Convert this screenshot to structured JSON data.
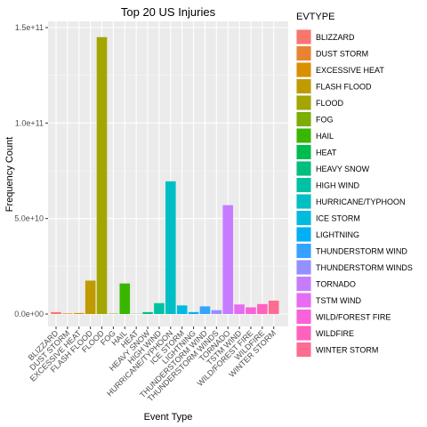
{
  "chart_data": {
    "type": "bar",
    "title": "Top 20 US Injuries",
    "xlabel": "Event Type",
    "ylabel": "Frequency Count",
    "ylim": [
      0,
      150000000000
    ],
    "y_ticks": [
      0,
      50000000000,
      100000000000,
      150000000000
    ],
    "y_tick_labels": [
      "0.0e+00",
      "5.0e+10",
      "1.0e+11",
      "1.5e+11"
    ],
    "grid": true,
    "legend_title": "EVTYPE",
    "legend_position": "right",
    "categories": [
      "BLIZZARD",
      "DUST STORM",
      "EXCESSIVE HEAT",
      "FLASH FLOOD",
      "FLOOD",
      "FOG",
      "HAIL",
      "HEAT",
      "HEAVY SNOW",
      "HIGH WIND",
      "HURRICANE/TYPHOON",
      "ICE STORM",
      "LIGHTNING",
      "THUNDERSTORM WIND",
      "THUNDERSTORM WINDS",
      "TORNADO",
      "TSTM WIND",
      "WILD/FOREST FIRE",
      "WILDFIRE",
      "WINTER STORM"
    ],
    "values": [
      1000000000,
      300000000,
      500000000,
      17500000000,
      145000000000,
      200000000,
      16000000000,
      100000000,
      1000000000,
      5700000000,
      69500000000,
      4500000000,
      1000000000,
      4000000000,
      2000000000,
      57000000000,
      5000000000,
      3500000000,
      5200000000,
      7000000000
    ],
    "colors": [
      "#F8766D",
      "#EA8331",
      "#D89000",
      "#C09B00",
      "#A3A500",
      "#7CAE00",
      "#39B600",
      "#00BB4E",
      "#00BF7D",
      "#00C1A3",
      "#00BFC4",
      "#00BAE0",
      "#00B0F6",
      "#35A2FF",
      "#9590FF",
      "#C77CFF",
      "#E76BF3",
      "#FA62DB",
      "#FF62BC",
      "#FF6C91"
    ]
  }
}
